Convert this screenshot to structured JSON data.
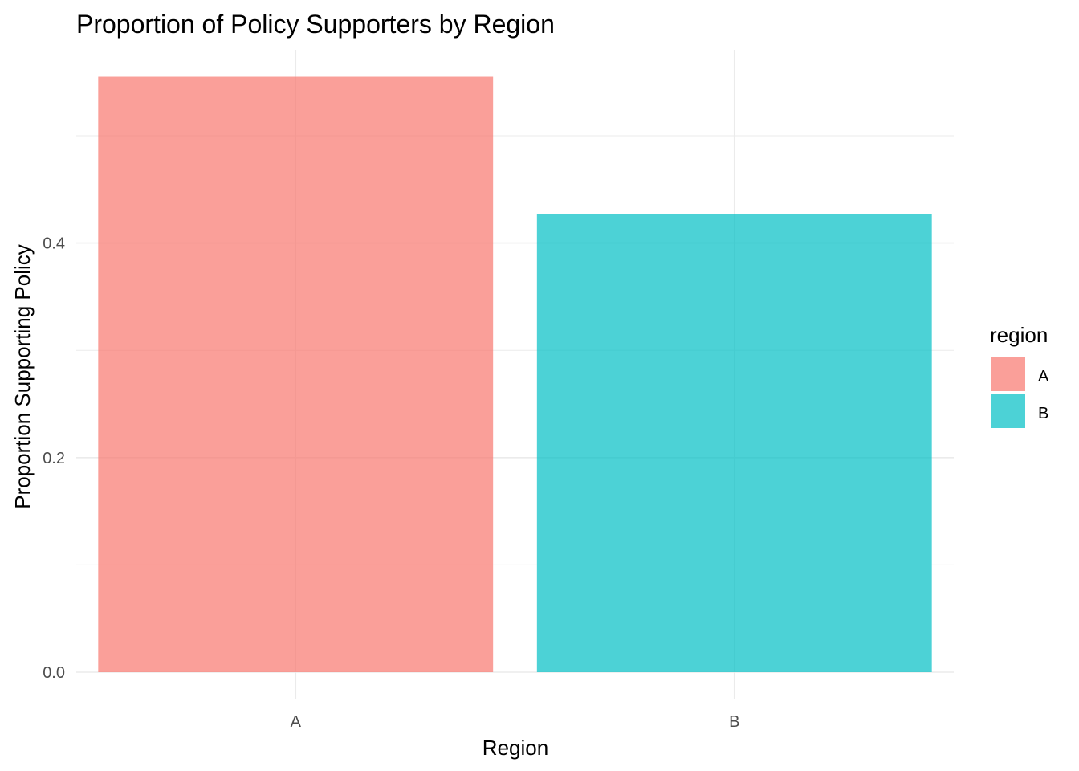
{
  "chart_data": {
    "type": "bar",
    "title": "Proportion of Policy Supporters by Region",
    "xlabel": "Region",
    "ylabel": "Proportion Supporting Policy",
    "categories": [
      "A",
      "B"
    ],
    "values": [
      0.555,
      0.427
    ],
    "ylim": [
      0,
      0.58
    ],
    "yticks": [
      0.0,
      0.2,
      0.4
    ],
    "ytick_labels": [
      "0.0",
      "0.2",
      "0.4"
    ],
    "grid": true,
    "legend": {
      "title": "region",
      "position": "right",
      "entries": [
        "A",
        "B"
      ]
    },
    "colors": {
      "A": "#F8766D",
      "B": "#00BFC4"
    },
    "bar_opacity": 0.7,
    "grid_color": "#ebebeb"
  }
}
